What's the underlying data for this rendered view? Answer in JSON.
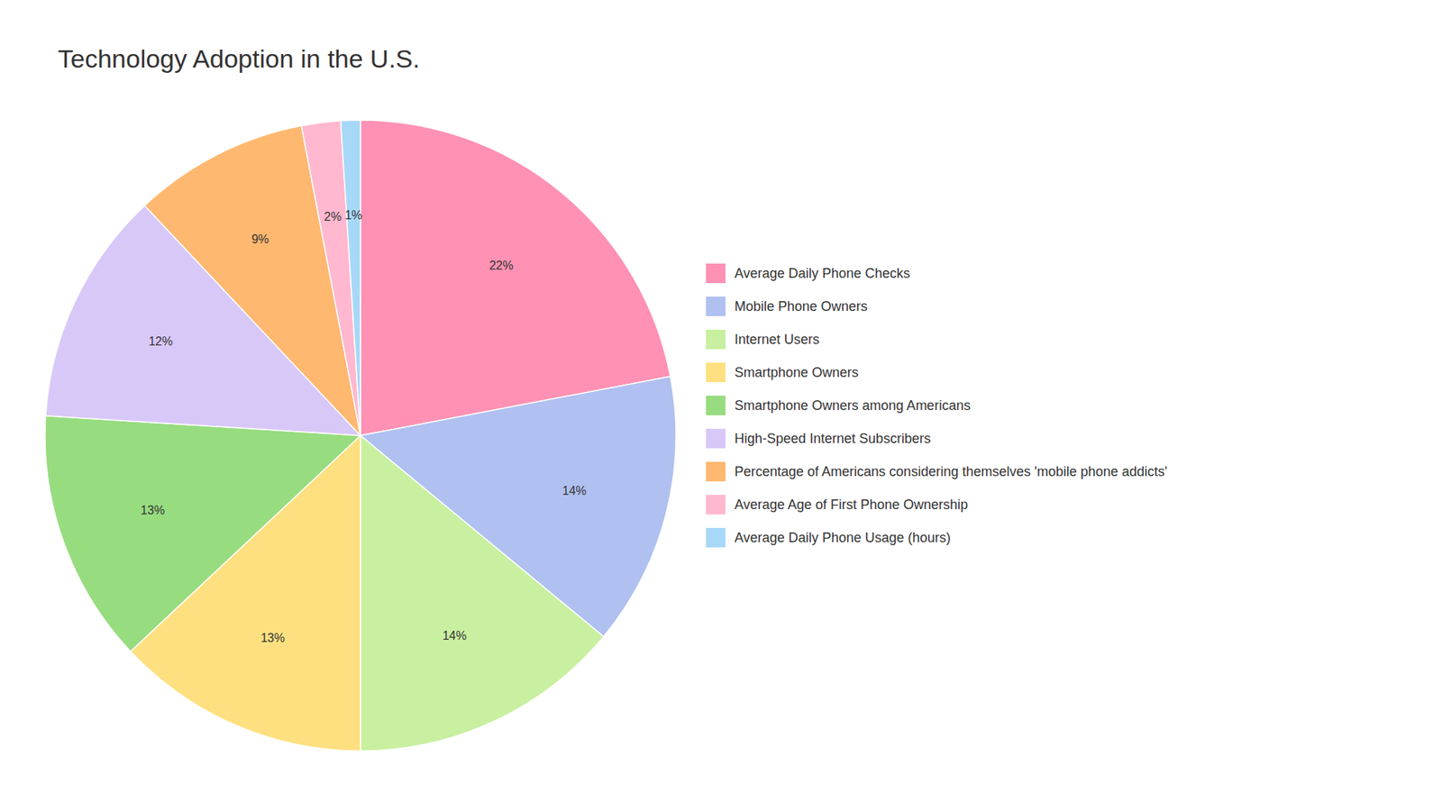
{
  "chart_data": {
    "type": "pie",
    "title": "Technology Adoption in the U.S.",
    "categories": [
      "Average Daily Phone Checks",
      "Mobile Phone Owners",
      "Internet Users",
      "Smartphone Owners",
      "Smartphone Owners among Americans",
      "High-Speed Internet Subscribers",
      "Percentage of Americans considering themselves 'mobile phone addicts'",
      "Average Age of First Phone Ownership",
      "Average Daily Phone Usage (hours)"
    ],
    "values": [
      22,
      14,
      14,
      13,
      13,
      12,
      9,
      2,
      1
    ],
    "value_labels": [
      "22%",
      "14%",
      "14%",
      "13%",
      "13%",
      "12%",
      "9%",
      "2%",
      "1%"
    ],
    "colors": [
      "#FF91B4",
      "#B0C0F0",
      "#C8F0A0",
      "#FFE080",
      "#98DC80",
      "#D8C8F8",
      "#FFB870",
      "#FFB8D0",
      "#A8D8F8"
    ],
    "data_labels": true,
    "legend": "right"
  }
}
